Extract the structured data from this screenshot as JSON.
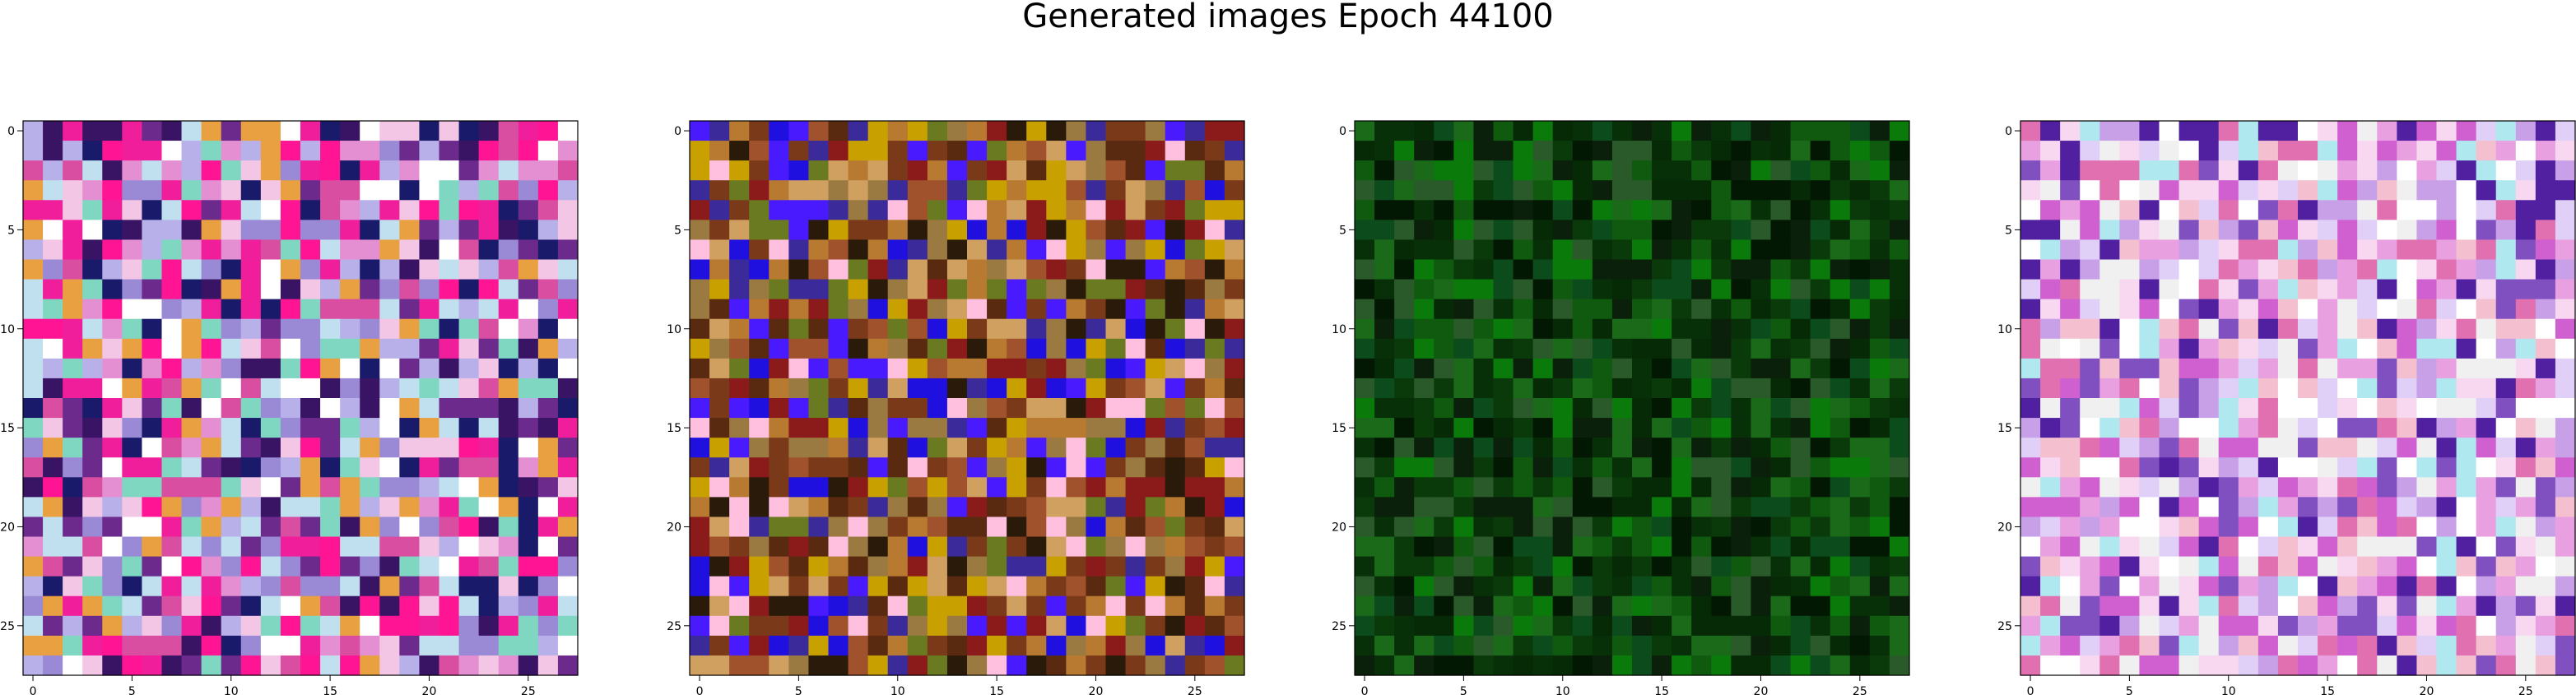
{
  "figure": {
    "title": "Generated images Epoch 44100"
  },
  "chart_data": {
    "type": "heatmap",
    "title": "Generated images Epoch 44100",
    "grid_size": [
      28,
      28
    ],
    "xlim": [
      -0.5,
      27.5
    ],
    "ylim": [
      27.5,
      -0.5
    ],
    "grid": false,
    "panels": [
      {
        "name": "",
        "tick_labels": [
          "0",
          "5",
          "10",
          "15",
          "20",
          "25"
        ],
        "palette": [
          "#f4c6e6",
          "#e58fd3",
          "#f01e9b",
          "#d94ea0",
          "#9a8ad6",
          "#b8b0e8",
          "#ffffff",
          "#3a1464",
          "#1a1a6a",
          "#7fd7c2",
          "#e8a040",
          "#c0e0f0",
          "#ff1493",
          "#6b2a8c"
        ]
      },
      {
        "name": "",
        "tick_labels": [
          "0",
          "5",
          "10",
          "15",
          "20",
          "25"
        ],
        "palette": [
          "#7a3a1a",
          "#a0522d",
          "#c8a000",
          "#5a2a10",
          "#2a1a0a",
          "#8b1a1a",
          "#b87a30",
          "#6a7a20",
          "#3a2a9a",
          "#2010e0",
          "#4a1aff",
          "#ffc0e0",
          "#d0a060",
          "#9a7a40"
        ]
      },
      {
        "name": "",
        "tick_labels": [
          "0",
          "5",
          "10",
          "15",
          "20",
          "25"
        ],
        "palette": [
          "#0a3a0a",
          "#105a10",
          "#0a7a0a",
          "#062a06",
          "#031803",
          "#0c4c1c",
          "#1a6a1a",
          "#0a200a",
          "#2a5a2a",
          "#083008"
        ]
      },
      {
        "name": "",
        "tick_labels": [
          "0",
          "5",
          "10",
          "15",
          "20",
          "25"
        ],
        "palette": [
          "#f8d8f0",
          "#e8a0e0",
          "#f0f0f0",
          "#c8a0e8",
          "#d060d0",
          "#ffffff",
          "#b0e8f0",
          "#e070b0",
          "#8050c0",
          "#f4c0d0",
          "#5020a0",
          "#e0d0f8"
        ]
      }
    ]
  }
}
